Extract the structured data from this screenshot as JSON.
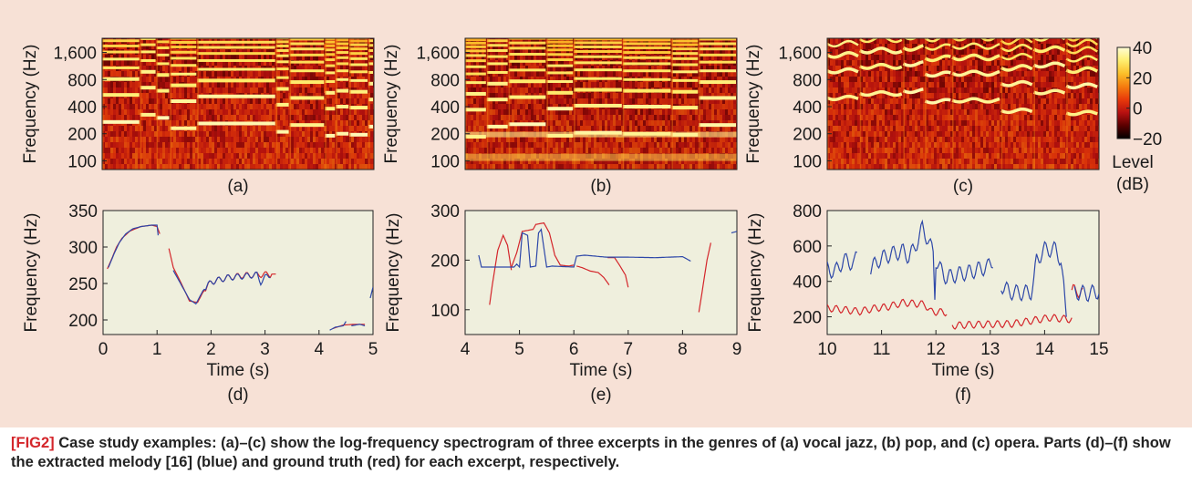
{
  "caption": {
    "tag": "[FIG2]",
    "text": " Case study examples: (a)–(c) show the log-frequency spectrogram of three excerpts in the genres of (a) vocal jazz, (b) pop, and (c) opera. Parts (d)–(f) show the extracted melody [16] (blue) and ground truth (red) for each excerpt, respectively."
  },
  "colors": {
    "panel_background": "#f7e1d6",
    "plot_background": "#efefdd",
    "extracted_melody": "#2d47a8",
    "ground_truth": "#d4262b",
    "caption_tag": "#d4262b"
  },
  "chart_data": [
    {
      "id": "a",
      "type": "heatmap",
      "label": "(a)",
      "genre": "vocal jazz",
      "ylabel": "Frequency (Hz)",
      "yscale": "log",
      "ylim": [
        80,
        2300
      ],
      "yticks": [
        100,
        200,
        400,
        800,
        1600
      ],
      "ytick_labels": [
        "100",
        "200",
        "400",
        "800",
        "1,600"
      ],
      "xlim": [
        0,
        5
      ],
      "notes": [
        [
          0.0,
          0.7,
          270
        ],
        [
          0.7,
          1.0,
          325
        ],
        [
          1.0,
          1.25,
          300
        ],
        [
          1.25,
          1.75,
          230
        ],
        [
          1.75,
          3.2,
          260
        ],
        [
          3.2,
          3.45,
          210
        ],
        [
          3.45,
          4.1,
          250
        ],
        [
          4.1,
          4.3,
          190
        ],
        [
          4.3,
          4.55,
          200
        ],
        [
          4.55,
          4.9,
          195
        ],
        [
          4.9,
          5.0,
          240
        ]
      ]
    },
    {
      "id": "b",
      "type": "heatmap",
      "label": "(b)",
      "genre": "pop",
      "ylabel": "Frequency (Hz)",
      "yscale": "log",
      "ylim": [
        80,
        2300
      ],
      "yticks": [
        100,
        200,
        400,
        800,
        1600
      ],
      "ytick_labels": [
        "100",
        "200",
        "400",
        "800",
        "1,600"
      ],
      "xlim": [
        4,
        9
      ],
      "notes": [
        [
          4.0,
          4.4,
          185
        ],
        [
          4.4,
          4.8,
          240
        ],
        [
          4.8,
          5.5,
          255
        ],
        [
          5.5,
          6.0,
          190
        ],
        [
          6.0,
          6.9,
          205
        ],
        [
          6.9,
          7.8,
          200
        ],
        [
          7.8,
          8.3,
          195
        ],
        [
          8.3,
          9.0,
          250
        ]
      ]
    },
    {
      "id": "c",
      "type": "heatmap",
      "label": "(c)",
      "genre": "opera",
      "ylabel": "Frequency (Hz)",
      "yscale": "log",
      "ylim": [
        80,
        2300
      ],
      "yticks": [
        100,
        200,
        400,
        800,
        1600
      ],
      "ytick_labels": [
        "100",
        "200",
        "400",
        "800",
        "1,600"
      ],
      "xlim": [
        10,
        15
      ],
      "notes": [
        [
          10.0,
          10.6,
          500
        ],
        [
          10.6,
          11.4,
          560
        ],
        [
          11.4,
          11.8,
          600
        ],
        [
          11.8,
          12.3,
          460
        ],
        [
          12.3,
          13.2,
          470
        ],
        [
          13.2,
          13.8,
          360
        ],
        [
          13.8,
          14.4,
          580
        ],
        [
          14.4,
          15.0,
          340
        ]
      ]
    },
    {
      "id": "d",
      "type": "line",
      "label": "(d)",
      "xlabel": "Time (s)",
      "ylabel": "Frequency (Hz)",
      "xlim": [
        0,
        5
      ],
      "ylim": [
        180,
        350
      ],
      "xticks": [
        0,
        1,
        2,
        3,
        4,
        5
      ],
      "yticks": [
        200,
        250,
        300,
        350
      ],
      "series": [
        {
          "role": "ground truth",
          "color": "#d4262b",
          "segments": [
            [
              [
                0.08,
                270
              ],
              [
                0.15,
                282
              ],
              [
                0.25,
                300
              ],
              [
                0.35,
                312
              ],
              [
                0.5,
                322
              ],
              [
                0.7,
                328
              ],
              [
                0.9,
                330
              ],
              [
                1.0,
                328
              ],
              [
                1.05,
                318
              ]
            ],
            [
              [
                1.22,
                298
              ],
              [
                1.3,
                272
              ],
              [
                1.45,
                250
              ],
              [
                1.6,
                226
              ],
              [
                1.75,
                224
              ],
              [
                1.85,
                238
              ],
              [
                2.0,
                252
              ],
              [
                2.3,
                258
              ],
              [
                2.6,
                261
              ],
              [
                2.9,
                262
              ],
              [
                3.2,
                263
              ]
            ],
            [
              [
                4.25,
                188
              ],
              [
                4.45,
                193
              ],
              [
                4.65,
                194
              ],
              [
                4.85,
                194
              ]
            ]
          ]
        },
        {
          "role": "extracted melody",
          "color": "#2d47a8",
          "segments": [
            [
              [
                0.1,
                272
              ],
              [
                0.2,
                290
              ],
              [
                0.3,
                306
              ],
              [
                0.42,
                318
              ],
              [
                0.55,
                325
              ],
              [
                0.7,
                328
              ],
              [
                0.9,
                330
              ],
              [
                1.0,
                330
              ],
              [
                1.02,
                316
              ]
            ],
            [
              [
                1.3,
                268
              ],
              [
                1.45,
                248
              ],
              [
                1.6,
                228
              ],
              [
                1.72,
                222
              ],
              [
                1.85,
                240
              ],
              [
                2.0,
                252
              ],
              [
                2.3,
                258
              ],
              [
                2.6,
                260
              ],
              [
                2.85,
                262
              ],
              [
                2.92,
                252
              ],
              [
                3.0,
                258
              ],
              [
                3.1,
                262
              ]
            ],
            [
              [
                4.2,
                186
              ],
              [
                4.3,
                190
              ],
              [
                4.45,
                192
              ],
              [
                4.5,
                198
              ]
            ],
            [
              [
                4.6,
                192
              ],
              [
                4.75,
                194
              ],
              [
                4.85,
                192
              ]
            ],
            [
              [
                4.95,
                230
              ],
              [
                5.0,
                245
              ]
            ]
          ]
        }
      ]
    },
    {
      "id": "e",
      "type": "line",
      "label": "(e)",
      "xlabel": "Time (s)",
      "ylabel": "Frequency (Hz)",
      "xlim": [
        4,
        9
      ],
      "ylim": [
        50,
        300
      ],
      "xticks": [
        4,
        5,
        6,
        7,
        8,
        9
      ],
      "yticks": [
        100,
        200,
        300
      ],
      "series": [
        {
          "role": "ground truth",
          "color": "#d4262b",
          "segments": [
            [
              [
                4.45,
                110
              ],
              [
                4.5,
                150
              ],
              [
                4.6,
                220
              ],
              [
                4.7,
                250
              ],
              [
                4.78,
                230
              ],
              [
                4.85,
                180
              ]
            ],
            [
              [
                4.85,
                185
              ],
              [
                4.95,
                215
              ],
              [
                5.05,
                258
              ],
              [
                5.15,
                260
              ],
              [
                5.25,
                262
              ],
              [
                5.3,
                272
              ],
              [
                5.45,
                275
              ],
              [
                5.55,
                255
              ],
              [
                5.65,
                210
              ],
              [
                5.75,
                190
              ],
              [
                5.9,
                188
              ],
              [
                6.0,
                190
              ]
            ],
            [
              [
                6.05,
                188
              ],
              [
                6.15,
                185
              ],
              [
                6.3,
                178
              ],
              [
                6.45,
                175
              ],
              [
                6.55,
                165
              ],
              [
                6.65,
                150
              ]
            ],
            [
              [
                6.62,
                205
              ],
              [
                6.75,
                205
              ],
              [
                6.85,
                188
              ],
              [
                6.95,
                170
              ],
              [
                7.0,
                145
              ]
            ],
            [
              [
                8.3,
                95
              ],
              [
                8.38,
                150
              ],
              [
                8.45,
                200
              ],
              [
                8.52,
                235
              ]
            ]
          ]
        },
        {
          "role": "extracted melody",
          "color": "#2d47a8",
          "segments": [
            [
              [
                4.25,
                210
              ],
              [
                4.3,
                186
              ],
              [
                4.9,
                186
              ],
              [
                4.95,
                192
              ],
              [
                5.0,
                186
              ],
              [
                5.05,
                255
              ],
              [
                5.15,
                250
              ],
              [
                5.2,
                186
              ],
              [
                5.3,
                188
              ],
              [
                5.35,
                255
              ],
              [
                5.4,
                262
              ],
              [
                5.5,
                186
              ],
              [
                5.6,
                188
              ],
              [
                6.0,
                186
              ],
              [
                6.05,
                208
              ],
              [
                6.2,
                210
              ],
              [
                6.6,
                206
              ],
              [
                7.0,
                206
              ],
              [
                7.5,
                205
              ],
              [
                8.0,
                207
              ],
              [
                8.15,
                198
              ]
            ],
            [
              [
                8.9,
                255
              ],
              [
                9.0,
                258
              ]
            ]
          ]
        }
      ]
    },
    {
      "id": "f",
      "type": "line",
      "label": "(f)",
      "xlabel": "Time (s)",
      "ylabel": "Frequency (Hz)",
      "xlim": [
        10,
        15
      ],
      "ylim": [
        100,
        800
      ],
      "xticks": [
        10,
        11,
        12,
        13,
        14,
        15
      ],
      "yticks": [
        200,
        400,
        600,
        800
      ],
      "series": [
        {
          "role": "ground truth",
          "color": "#d4262b",
          "segments": [
            [
              [
                10.0,
                250
              ],
              [
                10.3,
                240
              ],
              [
                10.6,
                230
              ],
              [
                10.9,
                250
              ],
              [
                11.1,
                255
              ],
              [
                11.4,
                280
              ],
              [
                11.8,
                270
              ],
              [
                11.9,
                230
              ],
              [
                12.2,
                225
              ]
            ],
            [
              [
                12.3,
                150
              ],
              [
                12.6,
                155
              ],
              [
                13.0,
                158
              ],
              [
                13.4,
                160
              ],
              [
                13.8,
                180
              ],
              [
                14.1,
                195
              ],
              [
                14.5,
                185
              ]
            ],
            [
              [
                14.5,
                330
              ],
              [
                14.6,
                360
              ],
              [
                14.7,
                320
              ]
            ]
          ]
        },
        {
          "role": "extracted melody",
          "color": "#2d47a8",
          "segments": [
            [
              [
                10.0,
                470
              ],
              [
                10.15,
                455
              ],
              [
                10.3,
                520
              ],
              [
                10.5,
                500
              ],
              [
                10.55,
                550
              ]
            ],
            [
              [
                10.8,
                470
              ],
              [
                10.95,
                520
              ],
              [
                11.1,
                545
              ],
              [
                11.25,
                560
              ],
              [
                11.4,
                570
              ],
              [
                11.5,
                540
              ],
              [
                11.6,
                580
              ],
              [
                11.75,
                700
              ],
              [
                11.85,
                640
              ],
              [
                11.95,
                560
              ],
              [
                11.98,
                330
              ],
              [
                12.0,
                520
              ],
              [
                12.05,
                480
              ],
              [
                12.2,
                420
              ],
              [
                12.4,
                440
              ],
              [
                12.6,
                450
              ],
              [
                12.8,
                470
              ],
              [
                12.95,
                480
              ],
              [
                13.05,
                520
              ]
            ],
            [
              [
                13.2,
                380
              ],
              [
                13.35,
                340
              ],
              [
                13.6,
                335
              ],
              [
                13.75,
                340
              ],
              [
                13.8,
                400
              ],
              [
                13.85,
                520
              ],
              [
                14.0,
                580
              ],
              [
                14.2,
                580
              ],
              [
                14.3,
                520
              ],
              [
                14.4,
                200
              ]
            ],
            [
              [
                14.55,
                340
              ],
              [
                14.8,
                330
              ],
              [
                15.0,
                345
              ]
            ]
          ]
        }
      ]
    }
  ],
  "colorbar": {
    "label_line1": "Level",
    "label_line2": "(dB)",
    "range": [
      -20,
      40
    ],
    "ticks": [
      40,
      20,
      0,
      -20
    ],
    "tick_labels": [
      "40",
      "20",
      "0",
      "−20"
    ],
    "colormap": [
      "#000000",
      "#5a0000",
      "#b81010",
      "#e83a0a",
      "#f57d0f",
      "#fcc02a",
      "#ffee70",
      "#fffdd6"
    ]
  }
}
